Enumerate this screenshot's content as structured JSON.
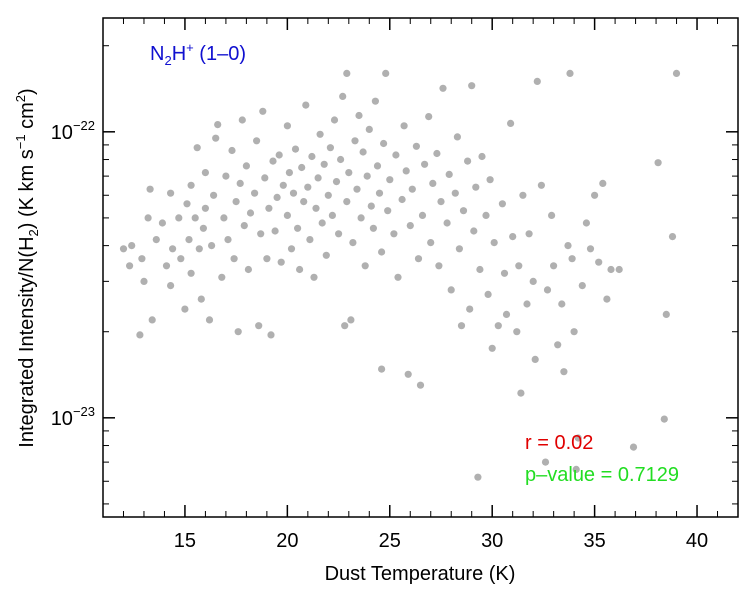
{
  "chart_data": {
    "type": "scatter",
    "title": "N2H+ (1-0)",
    "title_parts": {
      "base1": "N",
      "sub1": "2",
      "base2": "H",
      "sup1": "+",
      "rest": " (1–0)"
    },
    "xlabel": "Dust Temperature (K)",
    "ylabel_parts": {
      "a": "Integrated Intensity/N(H",
      "sub": "2",
      "b": ") (K km s",
      "sup1": "−1",
      "c": " cm",
      "sup2": "2",
      "d": ")"
    },
    "xlim": [
      11,
      42
    ],
    "ylim": [
      4.5e-24,
      2.5e-22
    ],
    "yscale": "log",
    "xticks": [
      {
        "value": 15,
        "label": "15"
      },
      {
        "value": 20,
        "label": "20"
      },
      {
        "value": 25,
        "label": "25"
      },
      {
        "value": 30,
        "label": "30"
      },
      {
        "value": 35,
        "label": "35"
      },
      {
        "value": 40,
        "label": "40"
      }
    ],
    "yticks": [
      {
        "value": 1e-23,
        "base": "10",
        "exp": "−23"
      },
      {
        "value": 1e-22,
        "base": "10",
        "exp": "−22"
      }
    ],
    "annotations": {
      "r": "r = 0.02",
      "p": "p–value = 0.7129"
    },
    "colors": {
      "points": "#b0b0b0",
      "title": "#1010d0",
      "r": "#e00000",
      "p": "#22dd22",
      "axis": "#000000"
    },
    "series": [
      {
        "name": "sources",
        "points": [
          [
            12.0,
            3.9e-23
          ],
          [
            12.3,
            3.4e-23
          ],
          [
            12.4,
            4e-23
          ],
          [
            12.8,
            1.95e-23
          ],
          [
            12.9,
            3.6e-23
          ],
          [
            13.0,
            3e-23
          ],
          [
            13.2,
            5e-23
          ],
          [
            13.3,
            6.3e-23
          ],
          [
            13.4,
            2.2e-23
          ],
          [
            13.6,
            4.2e-23
          ],
          [
            13.9,
            4.8e-23
          ],
          [
            14.1,
            3.4e-23
          ],
          [
            14.3,
            6.1e-23
          ],
          [
            14.3,
            2.9e-23
          ],
          [
            14.4,
            3.9e-23
          ],
          [
            14.7,
            5e-23
          ],
          [
            14.8,
            3.6e-23
          ],
          [
            15.0,
            2.4e-23
          ],
          [
            15.1,
            5.6e-23
          ],
          [
            15.2,
            4.2e-23
          ],
          [
            15.3,
            3.2e-23
          ],
          [
            15.3,
            6.5e-23
          ],
          [
            15.5,
            5e-23
          ],
          [
            15.6,
            8.8e-23
          ],
          [
            15.7,
            3.9e-23
          ],
          [
            15.8,
            2.6e-23
          ],
          [
            15.9,
            4.6e-23
          ],
          [
            16.0,
            5.4e-23
          ],
          [
            16.0,
            7.2e-23
          ],
          [
            16.2,
            2.2e-23
          ],
          [
            16.3,
            4e-23
          ],
          [
            16.4,
            6e-23
          ],
          [
            16.5,
            9.5e-23
          ],
          [
            16.6,
            1.06e-22
          ],
          [
            16.8,
            3.1e-23
          ],
          [
            16.9,
            5e-23
          ],
          [
            17.0,
            7e-23
          ],
          [
            17.1,
            4.2e-23
          ],
          [
            17.3,
            8.6e-23
          ],
          [
            17.4,
            3.6e-23
          ],
          [
            17.5,
            5.7e-23
          ],
          [
            17.6,
            2e-23
          ],
          [
            17.7,
            6.6e-23
          ],
          [
            17.8,
            1.1e-22
          ],
          [
            17.9,
            4.7e-23
          ],
          [
            18.0,
            7.6e-23
          ],
          [
            18.1,
            3.3e-23
          ],
          [
            18.2,
            5.2e-23
          ],
          [
            18.4,
            6.1e-23
          ],
          [
            18.5,
            9.3e-23
          ],
          [
            18.6,
            2.1e-23
          ],
          [
            18.7,
            4.4e-23
          ],
          [
            18.8,
            1.18e-22
          ],
          [
            18.9,
            6.9e-23
          ],
          [
            19.0,
            3.6e-23
          ],
          [
            19.1,
            5.4e-23
          ],
          [
            19.2,
            1.95e-23
          ],
          [
            19.3,
            7.9e-23
          ],
          [
            19.4,
            4.5e-23
          ],
          [
            19.5,
            5.9e-23
          ],
          [
            19.6,
            8.3e-23
          ],
          [
            19.7,
            3.5e-23
          ],
          [
            19.8,
            6.5e-23
          ],
          [
            20.0,
            1.05e-22
          ],
          [
            20.0,
            5.1e-23
          ],
          [
            20.1,
            7.2e-23
          ],
          [
            20.2,
            3.9e-23
          ],
          [
            20.3,
            6.1e-23
          ],
          [
            20.4,
            8.7e-23
          ],
          [
            20.5,
            4.6e-23
          ],
          [
            20.6,
            3.3e-23
          ],
          [
            20.7,
            7.5e-23
          ],
          [
            20.8,
            5.7e-23
          ],
          [
            20.9,
            1.24e-22
          ],
          [
            21.0,
            6.4e-23
          ],
          [
            21.1,
            4.2e-23
          ],
          [
            21.2,
            8.2e-23
          ],
          [
            21.3,
            3.1e-23
          ],
          [
            21.4,
            5.4e-23
          ],
          [
            21.5,
            6.9e-23
          ],
          [
            21.6,
            9.8e-23
          ],
          [
            21.7,
            4.8e-23
          ],
          [
            21.8,
            7.7e-23
          ],
          [
            21.9,
            3.7e-23
          ],
          [
            22.0,
            6e-23
          ],
          [
            22.1,
            8.8e-23
          ],
          [
            22.2,
            5.1e-23
          ],
          [
            22.3,
            1.1e-22
          ],
          [
            22.4,
            6.7e-23
          ],
          [
            22.5,
            4.4e-23
          ],
          [
            22.6,
            8e-23
          ],
          [
            22.7,
            1.33e-22
          ],
          [
            22.8,
            2.1e-23
          ],
          [
            22.9,
            5.7e-23
          ],
          [
            22.9,
            1.6e-22
          ],
          [
            23.0,
            7.2e-23
          ],
          [
            23.1,
            2.2e-23
          ],
          [
            23.2,
            4.1e-23
          ],
          [
            23.3,
            9.3e-23
          ],
          [
            23.4,
            6.3e-23
          ],
          [
            23.5,
            1.14e-22
          ],
          [
            23.6,
            5e-23
          ],
          [
            23.7,
            8.5e-23
          ],
          [
            23.8,
            3.4e-23
          ],
          [
            23.9,
            7e-23
          ],
          [
            24.0,
            1.02e-22
          ],
          [
            24.1,
            5.5e-23
          ],
          [
            24.2,
            4.6e-23
          ],
          [
            24.3,
            1.28e-22
          ],
          [
            24.4,
            7.6e-23
          ],
          [
            24.5,
            6.1e-23
          ],
          [
            24.6,
            1.48e-23
          ],
          [
            24.6,
            3.8e-23
          ],
          [
            24.7,
            9.1e-23
          ],
          [
            24.8,
            1.6e-22
          ],
          [
            24.9,
            5.3e-23
          ],
          [
            25.0,
            6.8e-23
          ],
          [
            25.2,
            4.4e-23
          ],
          [
            25.3,
            8.3e-23
          ],
          [
            25.4,
            3.1e-23
          ],
          [
            25.6,
            5.8e-23
          ],
          [
            25.7,
            1.05e-22
          ],
          [
            25.8,
            7.3e-23
          ],
          [
            25.9,
            1.42e-23
          ],
          [
            26.0,
            4.7e-23
          ],
          [
            26.1,
            6.3e-23
          ],
          [
            26.3,
            8.9e-23
          ],
          [
            26.4,
            3.6e-23
          ],
          [
            26.5,
            1.3e-23
          ],
          [
            26.6,
            5.1e-23
          ],
          [
            26.7,
            7.7e-23
          ],
          [
            26.9,
            1.13e-22
          ],
          [
            27.0,
            4.1e-23
          ],
          [
            27.1,
            6.6e-23
          ],
          [
            27.3,
            8.4e-23
          ],
          [
            27.4,
            3.4e-23
          ],
          [
            27.5,
            5.7e-23
          ],
          [
            27.6,
            1.42e-22
          ],
          [
            27.8,
            4.8e-23
          ],
          [
            27.9,
            7.1e-23
          ],
          [
            28.0,
            2.8e-23
          ],
          [
            28.2,
            6.1e-23
          ],
          [
            28.3,
            9.6e-23
          ],
          [
            28.4,
            3.9e-23
          ],
          [
            28.5,
            2.1e-23
          ],
          [
            28.6,
            5.3e-23
          ],
          [
            28.8,
            7.9e-23
          ],
          [
            28.9,
            2.4e-23
          ],
          [
            29.0,
            1.45e-22
          ],
          [
            29.1,
            4.5e-23
          ],
          [
            29.2,
            6.4e-23
          ],
          [
            29.3,
            6.2e-24
          ],
          [
            29.4,
            3.3e-23
          ],
          [
            29.5,
            8.2e-23
          ],
          [
            29.7,
            5.1e-23
          ],
          [
            29.8,
            2.7e-23
          ],
          [
            29.9,
            6.8e-23
          ],
          [
            30.0,
            1.75e-23
          ],
          [
            30.1,
            4.1e-23
          ],
          [
            30.3,
            2.1e-23
          ],
          [
            30.5,
            5.6e-23
          ],
          [
            30.6,
            3.2e-23
          ],
          [
            30.7,
            2.3e-23
          ],
          [
            30.9,
            1.07e-22
          ],
          [
            31.0,
            4.3e-23
          ],
          [
            31.2,
            2e-23
          ],
          [
            31.3,
            3.4e-23
          ],
          [
            31.4,
            1.22e-23
          ],
          [
            31.5,
            6e-23
          ],
          [
            31.7,
            2.5e-23
          ],
          [
            31.8,
            4.4e-23
          ],
          [
            32.0,
            3e-23
          ],
          [
            32.1,
            1.6e-23
          ],
          [
            32.2,
            1.5e-22
          ],
          [
            32.4,
            6.5e-23
          ],
          [
            32.6,
            7e-24
          ],
          [
            32.7,
            2.8e-23
          ],
          [
            32.9,
            5.1e-23
          ],
          [
            33.0,
            3.4e-23
          ],
          [
            33.2,
            1.8e-23
          ],
          [
            33.4,
            2.5e-23
          ],
          [
            33.5,
            1.45e-23
          ],
          [
            33.7,
            4e-23
          ],
          [
            33.8,
            1.6e-22
          ],
          [
            33.9,
            3.6e-23
          ],
          [
            34.0,
            2e-23
          ],
          [
            34.1,
            6.6e-24
          ],
          [
            34.2,
            8.5e-24
          ],
          [
            34.4,
            2.9e-23
          ],
          [
            34.6,
            4.8e-23
          ],
          [
            34.8,
            3.9e-23
          ],
          [
            35.0,
            6e-23
          ],
          [
            35.2,
            3.5e-23
          ],
          [
            35.4,
            6.6e-23
          ],
          [
            35.6,
            2.6e-23
          ],
          [
            35.8,
            3.3e-23
          ],
          [
            36.2,
            3.3e-23
          ],
          [
            36.9,
            7.9e-24
          ],
          [
            38.1,
            7.8e-23
          ],
          [
            38.4,
            9.9e-24
          ],
          [
            38.5,
            2.3e-23
          ],
          [
            38.8,
            4.3e-23
          ],
          [
            39.0,
            1.6e-22
          ]
        ]
      }
    ]
  }
}
